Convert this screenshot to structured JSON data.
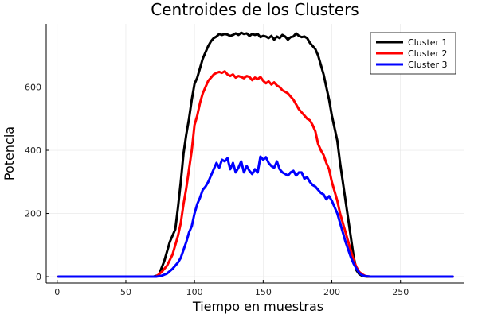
{
  "chart_data": {
    "type": "line",
    "title": "Centroides de los Clusters",
    "xlabel": "Tiempo en muestras",
    "ylabel": "Potencia",
    "xlim": [
      -8,
      296
    ],
    "ylim": [
      -20,
      800
    ],
    "xticks": [
      0,
      50,
      100,
      150,
      200,
      250
    ],
    "yticks": [
      0,
      200,
      400,
      600
    ],
    "grid": true,
    "legend_position": "top-right",
    "series": [
      {
        "name": "Cluster 1",
        "color": "#000000",
        "x": [
          1,
          70,
          74,
          78,
          82,
          86,
          88,
          90,
          92,
          94,
          96,
          98,
          100,
          102,
          104,
          106,
          108,
          110,
          112,
          114,
          116,
          118,
          120,
          122,
          124,
          126,
          128,
          130,
          132,
          134,
          136,
          138,
          140,
          142,
          144,
          146,
          148,
          150,
          152,
          154,
          156,
          158,
          160,
          162,
          164,
          166,
          168,
          170,
          172,
          174,
          176,
          178,
          180,
          182,
          184,
          186,
          188,
          190,
          192,
          194,
          196,
          198,
          200,
          202,
          204,
          206,
          208,
          210,
          212,
          214,
          216,
          218,
          220,
          222,
          224,
          226,
          228,
          230,
          288
        ],
        "y": [
          0,
          0,
          5,
          50,
          110,
          150,
          220,
          300,
          390,
          450,
          500,
          560,
          610,
          630,
          660,
          690,
          710,
          730,
          745,
          755,
          760,
          768,
          765,
          768,
          766,
          762,
          765,
          770,
          765,
          772,
          768,
          770,
          762,
          768,
          765,
          768,
          758,
          762,
          760,
          755,
          762,
          750,
          760,
          755,
          765,
          760,
          750,
          758,
          760,
          770,
          762,
          758,
          760,
          755,
          740,
          730,
          720,
          700,
          670,
          640,
          600,
          560,
          510,
          470,
          430,
          360,
          300,
          240,
          180,
          120,
          60,
          20,
          8,
          3,
          1,
          0,
          0,
          0,
          0
        ]
      },
      {
        "name": "Cluster 2",
        "color": "#ff0000",
        "x": [
          1,
          72,
          76,
          80,
          84,
          88,
          90,
          92,
          94,
          96,
          98,
          100,
          102,
          104,
          106,
          108,
          110,
          112,
          114,
          116,
          118,
          120,
          122,
          124,
          126,
          128,
          130,
          132,
          134,
          136,
          138,
          140,
          142,
          144,
          146,
          148,
          150,
          152,
          154,
          156,
          158,
          160,
          162,
          164,
          166,
          168,
          170,
          172,
          174,
          176,
          178,
          180,
          182,
          184,
          186,
          188,
          190,
          192,
          194,
          196,
          198,
          200,
          202,
          204,
          206,
          208,
          210,
          212,
          214,
          216,
          218,
          220,
          222,
          224,
          226,
          228,
          288
        ],
        "y": [
          0,
          0,
          15,
          35,
          70,
          130,
          170,
          230,
          280,
          340,
          400,
          480,
          510,
          550,
          580,
          600,
          620,
          630,
          640,
          645,
          648,
          645,
          650,
          640,
          635,
          640,
          630,
          635,
          632,
          628,
          635,
          632,
          622,
          630,
          625,
          632,
          620,
          612,
          618,
          608,
          615,
          605,
          600,
          590,
          585,
          580,
          570,
          560,
          545,
          530,
          520,
          510,
          500,
          495,
          480,
          460,
          420,
          400,
          385,
          360,
          340,
          300,
          270,
          240,
          200,
          170,
          140,
          110,
          80,
          50,
          30,
          15,
          8,
          3,
          1,
          0,
          0
        ]
      },
      {
        "name": "Cluster 3",
        "color": "#0000ff",
        "x": [
          1,
          72,
          76,
          80,
          84,
          88,
          90,
          92,
          94,
          96,
          98,
          100,
          102,
          104,
          106,
          108,
          110,
          112,
          114,
          116,
          118,
          120,
          122,
          124,
          126,
          128,
          130,
          132,
          134,
          136,
          138,
          140,
          142,
          144,
          146,
          148,
          150,
          152,
          154,
          156,
          158,
          160,
          162,
          164,
          166,
          168,
          170,
          172,
          174,
          176,
          178,
          180,
          182,
          184,
          186,
          188,
          190,
          192,
          194,
          196,
          198,
          200,
          202,
          204,
          206,
          208,
          210,
          212,
          214,
          216,
          218,
          220,
          222,
          224,
          226,
          228,
          230,
          288
        ],
        "y": [
          0,
          0,
          3,
          10,
          25,
          45,
          60,
          85,
          110,
          140,
          160,
          200,
          230,
          250,
          275,
          285,
          300,
          320,
          340,
          360,
          345,
          370,
          365,
          375,
          340,
          360,
          330,
          345,
          365,
          330,
          350,
          335,
          325,
          340,
          330,
          380,
          370,
          378,
          360,
          350,
          345,
          365,
          340,
          330,
          325,
          320,
          330,
          335,
          320,
          330,
          330,
          310,
          315,
          300,
          290,
          285,
          275,
          265,
          260,
          245,
          255,
          240,
          220,
          200,
          170,
          140,
          110,
          85,
          60,
          40,
          25,
          12,
          5,
          2,
          1,
          0,
          0,
          0
        ]
      }
    ]
  }
}
